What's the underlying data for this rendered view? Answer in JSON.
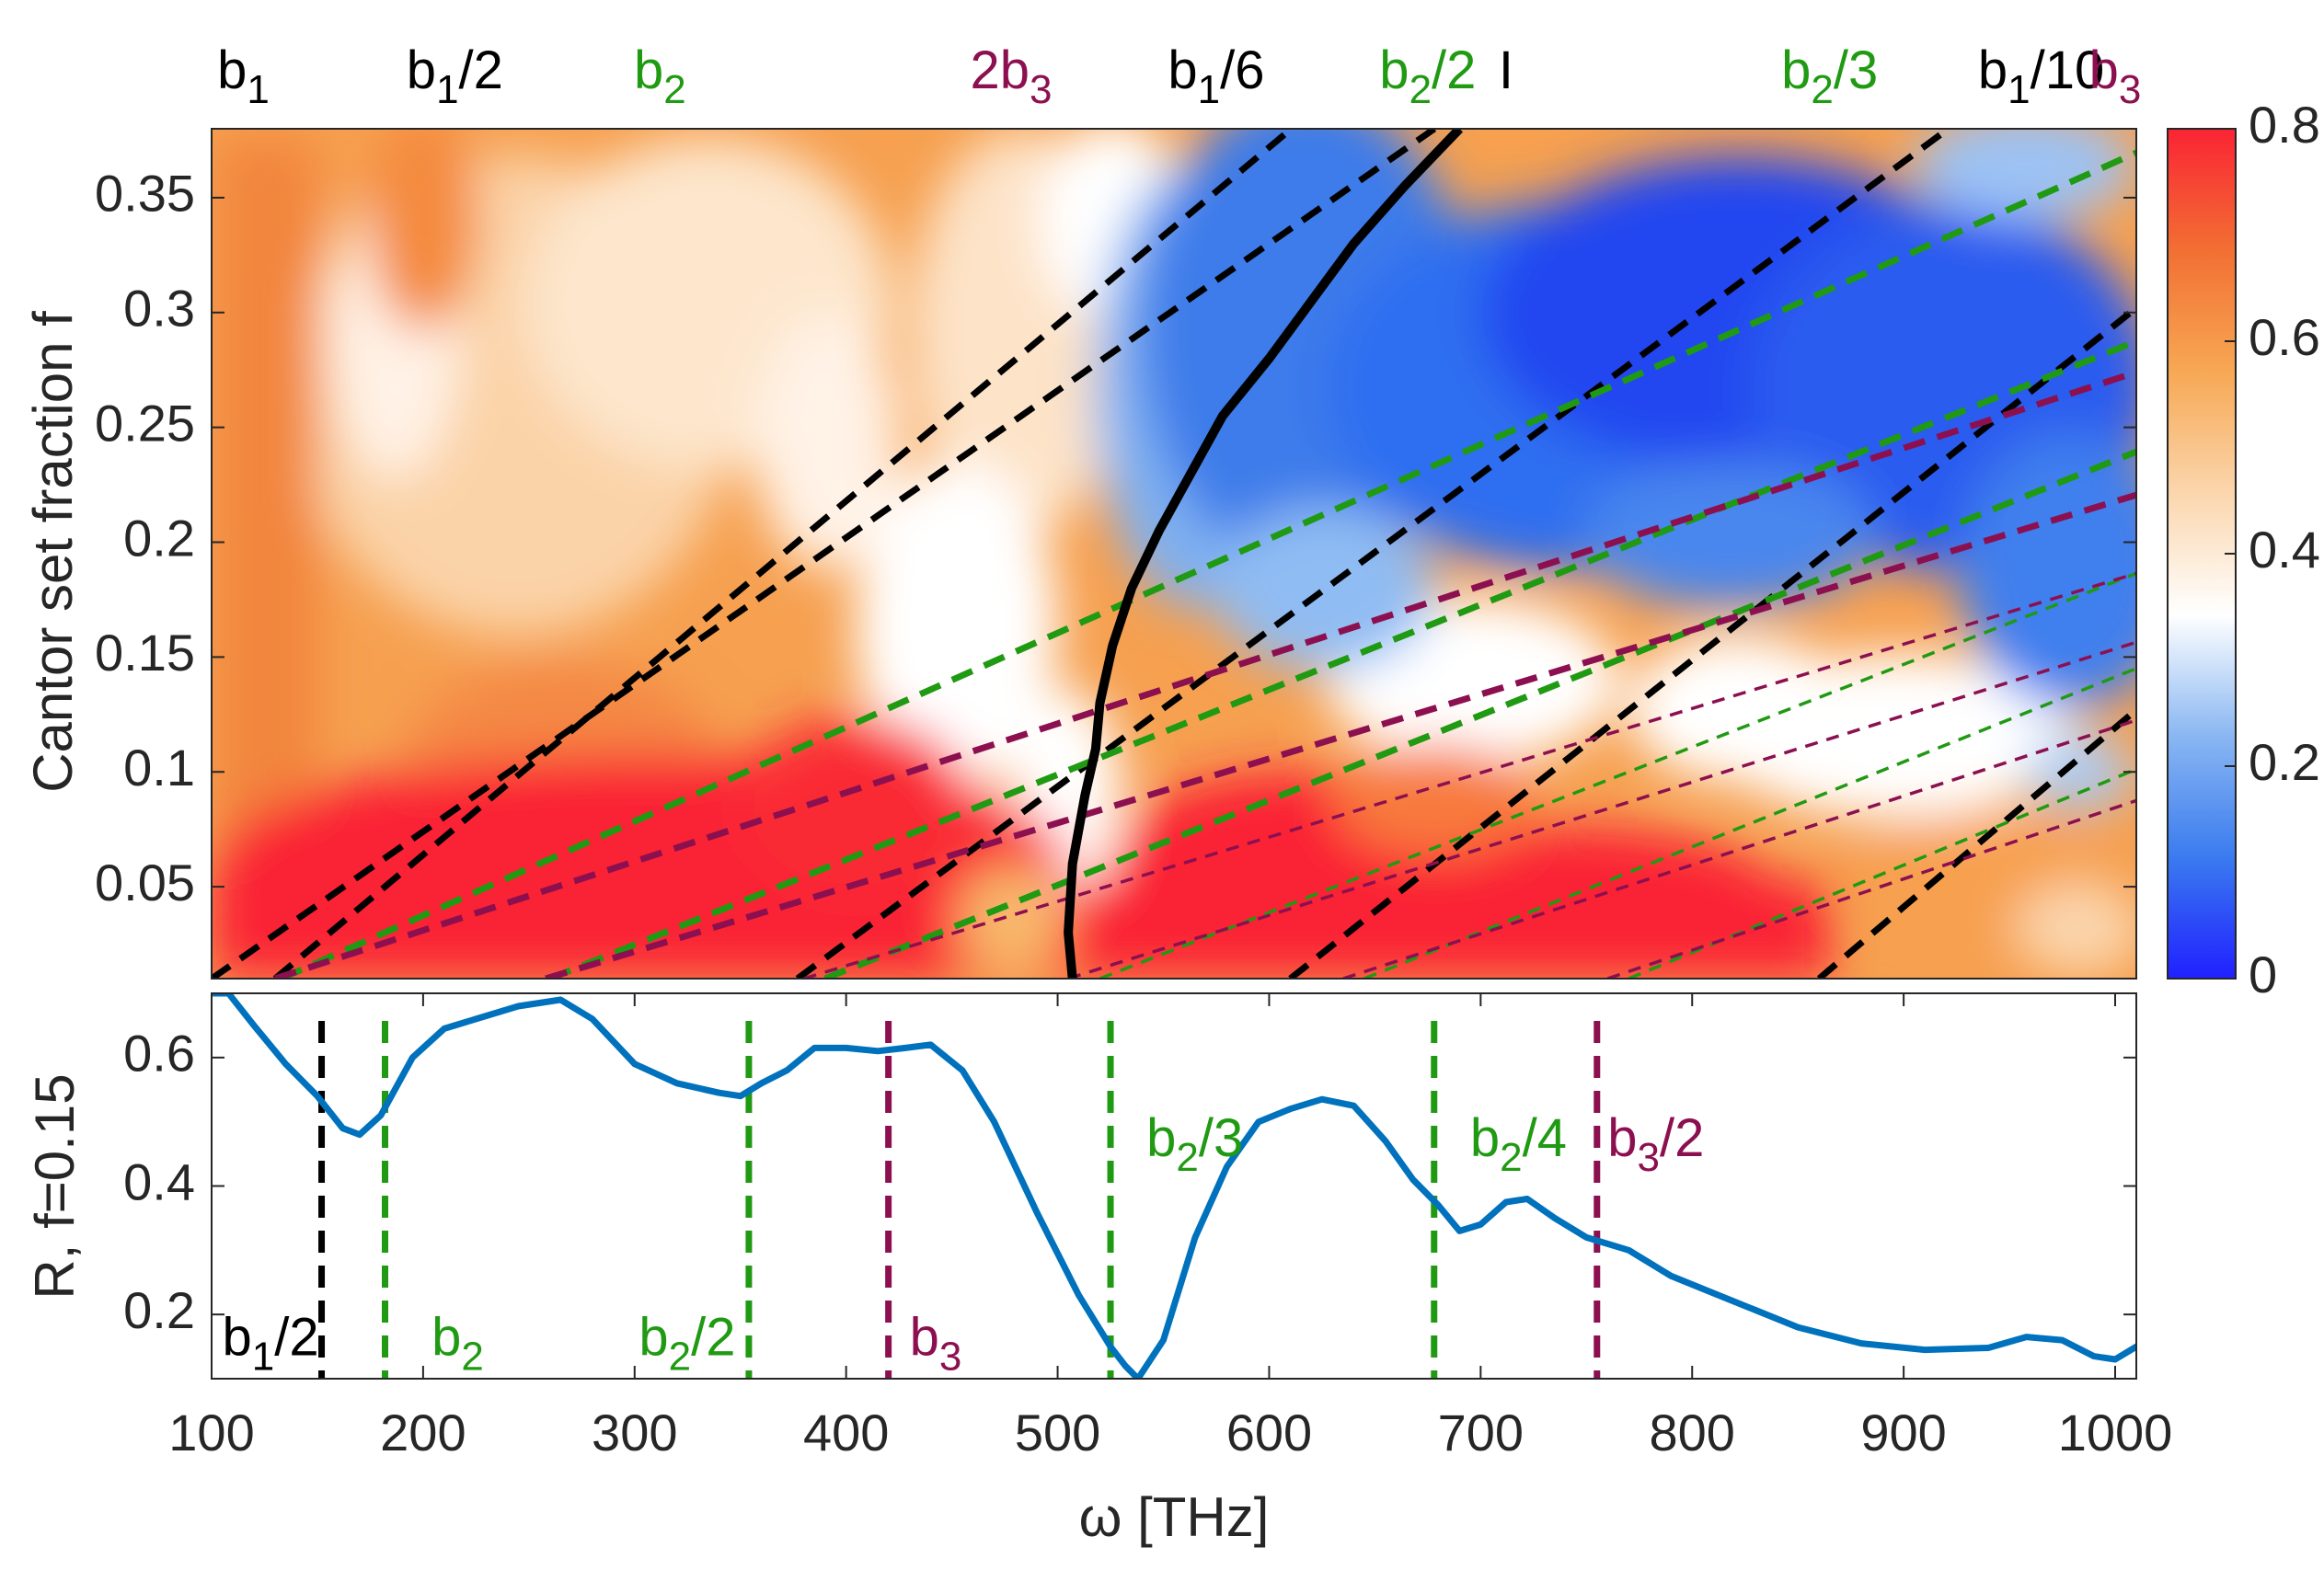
{
  "chart_data": [
    {
      "type": "heatmap",
      "panel": "top",
      "ylabel": "Cantor set fraction f",
      "xlim": [
        100,
        1010
      ],
      "ylim": [
        0.01,
        0.38
      ],
      "yticks": [
        0.05,
        0.1,
        0.15,
        0.2,
        0.25,
        0.3,
        0.35
      ],
      "ytick_labels": [
        "0.05",
        "0.1",
        "0.15",
        "0.2",
        "0.25",
        "0.3",
        "0.35"
      ],
      "colorbar": {
        "range": [
          0,
          0.8
        ],
        "ticks": [
          0,
          0.2,
          0.4,
          0.6,
          0.8
        ],
        "tick_labels": [
          "0",
          "0.2",
          "0.4",
          "0.6",
          "0.8"
        ],
        "colormap": [
          "#2020ff",
          "#3a7bef",
          "#8ab7f2",
          "#ffffff",
          "#fbd6ad",
          "#f7a854",
          "#f26f33",
          "#fa2434"
        ]
      },
      "colors": {
        "black": "#000000",
        "green": "#1f9a12",
        "purple": "#8c1050",
        "solid": "#000000"
      },
      "top_labels": [
        {
          "base": "b",
          "sub": "1",
          "suffix": "",
          "x": 115,
          "color": "black"
        },
        {
          "base": "b",
          "sub": "1",
          "suffix": "/2",
          "x": 215,
          "color": "black"
        },
        {
          "base": "b",
          "sub": "2",
          "suffix": "",
          "x": 312,
          "color": "green"
        },
        {
          "base": "2b",
          "sub": "3",
          "suffix": "",
          "x": 478,
          "color": "purple"
        },
        {
          "base": "b",
          "sub": "1",
          "suffix": "/6",
          "x": 575,
          "color": "black"
        },
        {
          "base": "b",
          "sub": "2",
          "suffix": "/2",
          "x": 675,
          "color": "green"
        },
        {
          "base": "I",
          "sub": "",
          "suffix": "",
          "x": 712,
          "color": "black"
        },
        {
          "base": "b",
          "sub": "2",
          "suffix": "/3",
          "x": 865,
          "color": "green"
        },
        {
          "base": "b",
          "sub": "1",
          "suffix": "/10",
          "x": 965,
          "color": "black"
        },
        {
          "base": "b",
          "sub": "3",
          "suffix": "",
          "x": 1000,
          "color": "purple"
        }
      ],
      "curves": [
        {
          "name": "b1",
          "color": "black",
          "style": "thick-dashed",
          "omega0": 100,
          "a": 0.64
        },
        {
          "name": "b1/2",
          "color": "black",
          "style": "thick-dashed",
          "omega0": 130,
          "a": 0.77
        },
        {
          "name": "b1/6",
          "color": "black",
          "style": "thick-dashed",
          "omega0": 377,
          "a": 0.68
        },
        {
          "name": "b1/10",
          "color": "black",
          "style": "thick-dashed",
          "omega0": 610,
          "a": 0.73
        },
        {
          "name": "b1/14",
          "color": "black",
          "style": "thick-dashed",
          "omega0": 860,
          "a": 0.78
        },
        {
          "name": "b2",
          "color": "green",
          "style": "thick-dashed",
          "omega0": 133,
          "a": 0.41
        },
        {
          "name": "b2/2",
          "color": "green",
          "style": "thick-dashed",
          "omega0": 260,
          "a": 0.37
        },
        {
          "name": "b2/3",
          "color": "green",
          "style": "thick-dashed",
          "omega0": 390,
          "a": 0.37
        },
        {
          "name": "b2/4",
          "color": "green",
          "style": "thin-dashed",
          "omega0": 520,
          "a": 0.36
        },
        {
          "name": "b2/5",
          "color": "green",
          "style": "thin-dashed",
          "omega0": 645,
          "a": 0.37
        },
        {
          "name": "b2/6",
          "color": "green",
          "style": "thin-dashed",
          "omega0": 770,
          "a": 0.38
        },
        {
          "name": "b3",
          "color": "purple",
          "style": "thick-dashed",
          "omega0": 130,
          "a": 0.3
        },
        {
          "name": "2b3",
          "color": "purple",
          "style": "thick-dashed",
          "omega0": 258,
          "a": 0.28
        },
        {
          "name": "b3/2",
          "color": "purple",
          "style": "thin-dashed",
          "omega0": 380,
          "a": 0.28
        },
        {
          "name": "b3/3",
          "color": "purple",
          "style": "thin-dashed",
          "omega0": 505,
          "a": 0.29
        },
        {
          "name": "b3/4",
          "color": "purple",
          "style": "thin-dashed",
          "omega0": 635,
          "a": 0.3
        },
        {
          "name": "b3/5",
          "color": "purple",
          "style": "thin-dashed",
          "omega0": 760,
          "a": 0.31
        }
      ],
      "solid_curve": {
        "name": "I",
        "points": [
          [
            507,
            0.01
          ],
          [
            505,
            0.03
          ],
          [
            507,
            0.06
          ],
          [
            513,
            0.09
          ],
          [
            518,
            0.11
          ],
          [
            520,
            0.13
          ],
          [
            526,
            0.155
          ],
          [
            535,
            0.18
          ],
          [
            548,
            0.205
          ],
          [
            563,
            0.23
          ],
          [
            578,
            0.255
          ],
          [
            600,
            0.28
          ],
          [
            620,
            0.305
          ],
          [
            640,
            0.33
          ],
          [
            664,
            0.355
          ],
          [
            690,
            0.38
          ]
        ]
      }
    },
    {
      "type": "line",
      "panel": "bottom",
      "xlabel": "ω [THz]",
      "ylabel": "R, f=0.15",
      "xlim": [
        100,
        1010
      ],
      "ylim": [
        0.1,
        0.7
      ],
      "xticks": [
        100,
        200,
        300,
        400,
        500,
        600,
        700,
        800,
        900,
        1000
      ],
      "xtick_labels": [
        "100",
        "200",
        "300",
        "400",
        "500",
        "600",
        "700",
        "800",
        "900",
        "1000"
      ],
      "yticks": [
        0.2,
        0.4,
        0.6
      ],
      "ytick_labels": [
        "0.2",
        "0.4",
        "0.6"
      ],
      "line_color": "#0072bd",
      "series": [
        {
          "name": "R",
          "x": [
            100,
            108,
            120,
            135,
            150,
            162,
            170,
            180,
            195,
            210,
            225,
            245,
            265,
            280,
            300,
            320,
            340,
            350,
            360,
            372,
            385,
            400,
            415,
            428,
            440,
            455,
            470,
            490,
            510,
            525,
            532,
            538,
            550,
            565,
            580,
            595,
            610,
            625,
            640,
            655,
            668,
            680,
            690,
            700,
            712,
            722,
            735,
            750,
            770,
            790,
            820,
            850,
            880,
            910,
            940,
            958,
            975,
            990,
            1000,
            1010
          ],
          "y": [
            0.7,
            0.7,
            0.65,
            0.59,
            0.54,
            0.49,
            0.48,
            0.51,
            0.6,
            0.645,
            0.66,
            0.68,
            0.69,
            0.66,
            0.59,
            0.56,
            0.545,
            0.54,
            0.56,
            0.58,
            0.615,
            0.615,
            0.61,
            0.615,
            0.62,
            0.58,
            0.5,
            0.36,
            0.23,
            0.15,
            0.12,
            0.1,
            0.16,
            0.32,
            0.43,
            0.5,
            0.52,
            0.535,
            0.525,
            0.47,
            0.41,
            0.37,
            0.33,
            0.34,
            0.375,
            0.38,
            0.35,
            0.32,
            0.3,
            0.26,
            0.22,
            0.18,
            0.155,
            0.145,
            0.148,
            0.165,
            0.16,
            0.135,
            0.13,
            0.15
          ]
        }
      ],
      "vlines": [
        {
          "x": 152,
          "color": "black"
        },
        {
          "x": 182,
          "color": "green"
        },
        {
          "x": 354,
          "color": "green"
        },
        {
          "x": 420,
          "color": "purple"
        },
        {
          "x": 525,
          "color": "green"
        },
        {
          "x": 678,
          "color": "green"
        },
        {
          "x": 755,
          "color": "purple"
        }
      ],
      "annotations": [
        {
          "base": "b",
          "sub": "1",
          "suffix": "/2",
          "x": 105,
          "y": 0.165,
          "color": "black"
        },
        {
          "base": "b",
          "sub": "2",
          "suffix": "",
          "x": 204,
          "y": 0.165,
          "color": "green"
        },
        {
          "base": "b",
          "sub": "2",
          "suffix": "/2",
          "x": 302,
          "y": 0.165,
          "color": "green"
        },
        {
          "base": "b",
          "sub": "3",
          "suffix": "",
          "x": 430,
          "y": 0.165,
          "color": "purple"
        },
        {
          "base": "b",
          "sub": "2",
          "suffix": "/3",
          "x": 542,
          "y": 0.475,
          "color": "green"
        },
        {
          "base": "b",
          "sub": "2",
          "suffix": "/4",
          "x": 695,
          "y": 0.475,
          "color": "green"
        },
        {
          "base": "b",
          "sub": "3",
          "suffix": "/2",
          "x": 760,
          "y": 0.475,
          "color": "purple"
        }
      ]
    }
  ]
}
